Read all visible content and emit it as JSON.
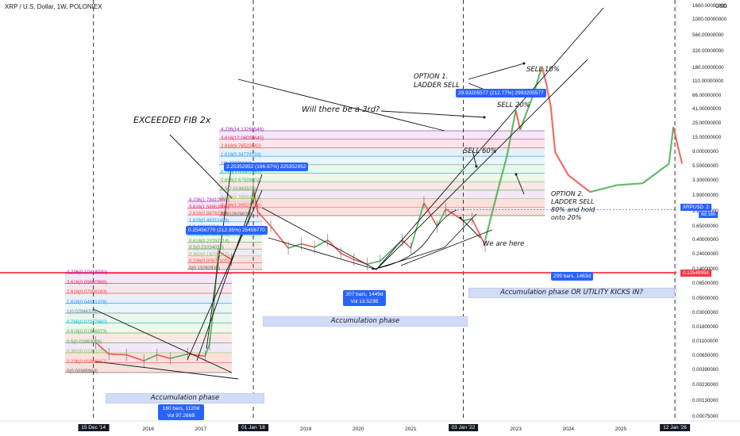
{
  "header": {
    "symbol_line": "XRP / U.S. Dollar, 1W, POLONIEX",
    "currency": "USD"
  },
  "colors": {
    "price_line": "#f23645",
    "bands": "#2962ff",
    "candles_up": "#4caf50",
    "candles_down": "#ef5350"
  },
  "chart_data": {
    "type": "candlestick",
    "title": "XRP / U.S. Dollar, 1W, POLONIEX",
    "y_scale": "log",
    "ylim": [
      0.00075,
      1600
    ],
    "y_ticks": [
      "1600.00000000",
      "1000.00000000",
      "560.00000000",
      "320.00000000",
      "180.00000000",
      "110.00000000",
      "66.00000000",
      "41.00000000",
      "25.00000000",
      "15.00000000",
      "9.00000000",
      "5.50000000",
      "3.30000000",
      "1.90000000",
      "1.10000000",
      "0.65000000",
      "0.40000000",
      "0.24000000",
      "0.14000000",
      "0.08500000",
      "0.05000000",
      "0.03000000",
      "0.01800000",
      "0.01100000",
      "0.00650000",
      "0.00390000",
      "0.00230000",
      "0.00130000",
      "0.00075000"
    ],
    "x_ticks": [
      "15 Dec '14",
      "2016",
      "2017",
      "01 Jan '18",
      "2019",
      "2020",
      "2021",
      "03 Jan '22",
      "2023",
      "2024",
      "2025",
      "12 Jan '26"
    ],
    "x_ticks_boxed": [
      "15 Dec '14",
      "01 Jan '18",
      "03 Jan '22",
      "12 Jan '26"
    ],
    "price_series": [
      [
        "2015-01",
        0.0105
      ],
      [
        "2015-04",
        0.007
      ],
      [
        "2015-08",
        0.0068
      ],
      [
        "2015-12",
        0.0055
      ],
      [
        "2016-03",
        0.0068
      ],
      [
        "2016-06",
        0.006
      ],
      [
        "2016-10",
        0.007
      ],
      [
        "2017-02",
        0.0065
      ],
      [
        "2017-03",
        0.01
      ],
      [
        "2017-04",
        0.04
      ],
      [
        "2017-05",
        0.27
      ],
      [
        "2017-08",
        0.2
      ],
      [
        "2017-12",
        0.85
      ],
      [
        "2018-01",
        2.5
      ],
      [
        "2018-02",
        1.1
      ],
      [
        "2018-05",
        0.65
      ],
      [
        "2018-09",
        0.3
      ],
      [
        "2018-12",
        0.35
      ],
      [
        "2019-03",
        0.31
      ],
      [
        "2019-06",
        0.4
      ],
      [
        "2019-09",
        0.25
      ],
      [
        "2019-12",
        0.2
      ],
      [
        "2020-03",
        0.17
      ],
      [
        "2020-06",
        0.19
      ],
      [
        "2020-11",
        0.4
      ],
      [
        "2021-01",
        0.3
      ],
      [
        "2021-04",
        1.5
      ],
      [
        "2021-07",
        0.65
      ],
      [
        "2021-09",
        1.2
      ],
      [
        "2022-01",
        0.8
      ],
      [
        "2022-03",
        0.85
      ],
      [
        "2022-06",
        0.33
      ]
    ],
    "projection_series": [
      [
        "2022-06",
        0.4
      ],
      [
        "2022-09",
        2.5
      ],
      [
        "2022-11",
        8
      ],
      [
        "2023-01",
        40
      ],
      [
        "2023-02",
        20
      ],
      [
        "2023-05",
        70
      ],
      [
        "2023-07",
        190
      ],
      [
        "2023-08",
        100
      ],
      [
        "2023-09",
        45
      ],
      [
        "2023-10",
        9
      ],
      [
        "2024-01",
        4
      ],
      [
        "2024-06",
        2.2
      ],
      [
        "2024-12",
        2.8
      ],
      [
        "2025-06",
        3.0
      ],
      [
        "2025-12",
        6
      ],
      [
        "2026-01",
        22
      ],
      [
        "2026-03",
        6
      ]
    ],
    "horizontal_line": {
      "value": 0.12549958,
      "label": "0.12549958"
    },
    "current_price": {
      "value": 1.17726212,
      "label": "1.17726212",
      "symbol": "XRPUSD",
      "countdown": "6d 16h"
    },
    "fib_sets": [
      {
        "levels": [
          "4.236(0.10418030)",
          "3.618(0.09660988)",
          "2.618(0.07096183)",
          "1.618(0.04531378)",
          "1(0.02946328)",
          "0.786(0.02377660)",
          "0.618(0.01966573)",
          "0.5(0.01663926)",
          "0.382(0.01361279)",
          "0.236(0.00986817)",
          "0(0.00385963)"
        ]
      },
      {
        "levels": [
          "4.236(1.78410859)",
          "3.618(1.58853308)",
          "2.618(0.88762384)",
          "1.618(0.48311409)",
          "1(0.32913004)",
          "0.786(0.27584213)",
          "0.618(0.23797318)",
          "0.5(0.21034018)",
          "0.382(0.18270717)",
          "0.236(0.00877109)",
          "0(0.13282935)"
        ]
      },
      {
        "levels": [
          "4.236(14.13266546)",
          "3.618(12.06096645)",
          "2.618(8.78523042)",
          "1.618(5.34779733)",
          "1(3.77779938)",
          "0.786(3.00003183)",
          "0.618(2.67539002)",
          "0.5(2.01393322)",
          "0.382(1.78531411)",
          "0.236(1.39523320)",
          "0(0.12829025)"
        ]
      }
    ],
    "info_boxes": [
      "0.25456770 (212.95%) 25456770",
      "2.25352952 (166.97%) 225352952",
      "29.93205577 (212.77%) 2993205577"
    ],
    "range_boxes": [
      {
        "line1": "160 bars, 1120d",
        "line2": "Vol 97.266B"
      },
      {
        "line1": "207 bars, 1449d",
        "line2": "Vol 13.523B"
      },
      {
        "line1": "209 bars, 1463d",
        "line2": ""
      }
    ],
    "phase_labels": [
      "Accumulation phase",
      "Accumulation phase",
      "Accumulation phase OR UTILITY KICKS IN?"
    ],
    "annotations": [
      "EXCEEDED FIB 2x",
      "Will there be a 3rd?",
      "OPTION 1.",
      "LADDER SELL",
      "SELL 10%",
      "SELL 20%",
      "SELL 60%",
      "OPTION 2.",
      "LADDER SELL",
      "80% and hold",
      "onto 20%",
      "We are here"
    ]
  }
}
